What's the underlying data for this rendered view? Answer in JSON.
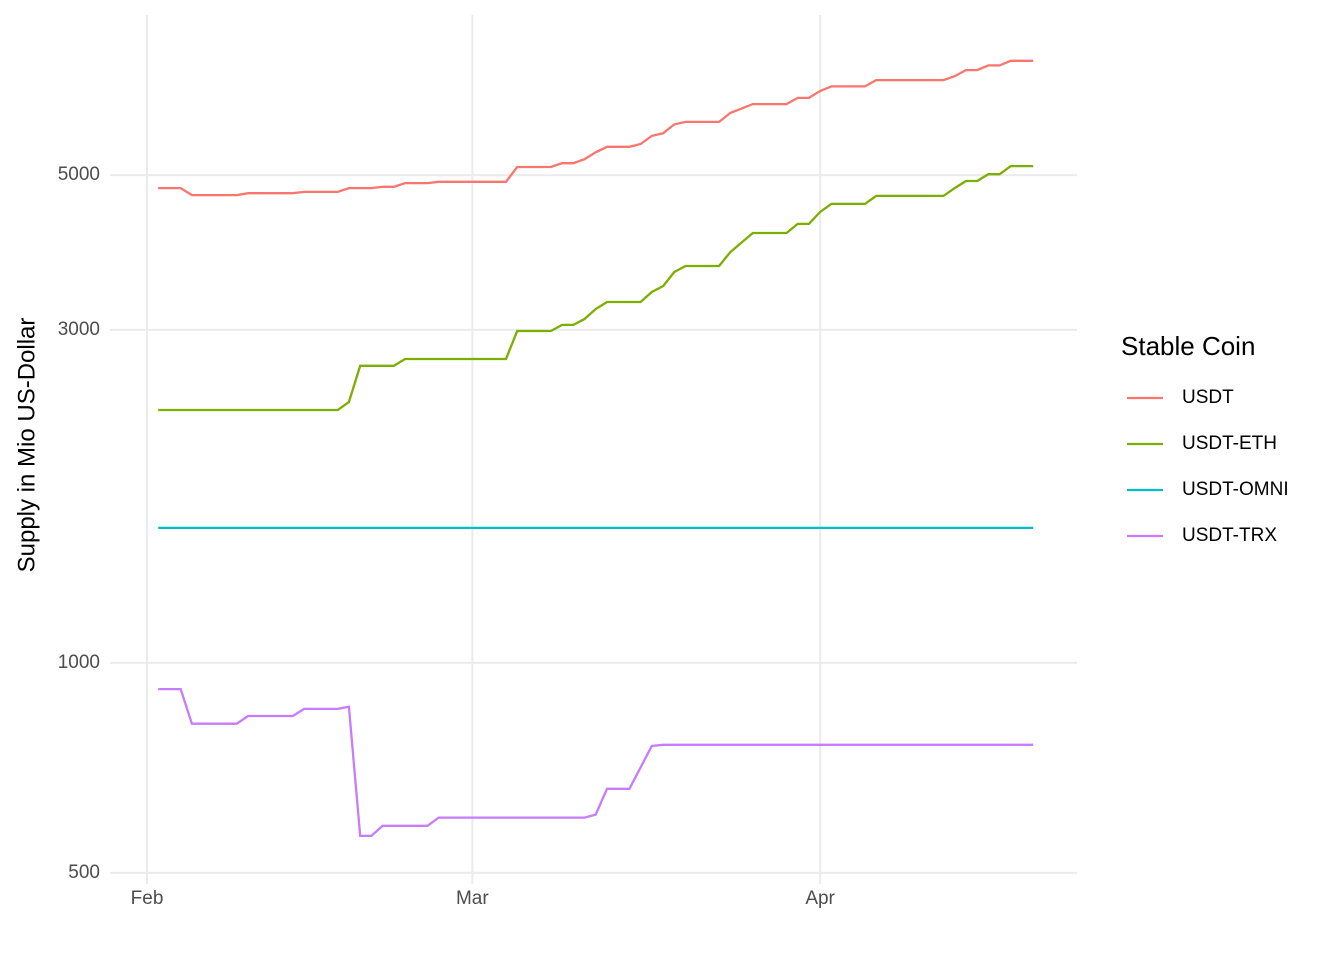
{
  "chart_data": {
    "type": "line",
    "ylabel": "Supply in Mio US-Dollar",
    "yscale": "log",
    "ylim": [
      482,
      8480
    ],
    "yticks": [
      500,
      1000,
      3000,
      5000
    ],
    "xlim": [
      -3.3,
      82.9
    ],
    "xticks": [
      {
        "value": 0,
        "label": "Feb"
      },
      {
        "value": 29,
        "label": "Mar"
      },
      {
        "value": 60,
        "label": "Apr"
      }
    ],
    "grid": true,
    "legend_title": "Stable Coin",
    "legend_position": "right",
    "series": [
      {
        "name": "USDT",
        "color": "#F8766D",
        "x": [
          1,
          3,
          4,
          8,
          9,
          13,
          14,
          17,
          18,
          20,
          21,
          22,
          23,
          25,
          26,
          32,
          33,
          36,
          37,
          38,
          39,
          40,
          41,
          43,
          44,
          45,
          46,
          47,
          48,
          51,
          52,
          54,
          57,
          58,
          59,
          60,
          61,
          64,
          65,
          71,
          72,
          73,
          74,
          75,
          76,
          77,
          79
        ],
        "values": [
          4790,
          4790,
          4680,
          4680,
          4710,
          4710,
          4730,
          4730,
          4790,
          4790,
          4810,
          4810,
          4870,
          4870,
          4890,
          4890,
          5135,
          5135,
          5200,
          5200,
          5270,
          5390,
          5490,
          5490,
          5540,
          5690,
          5740,
          5910,
          5960,
          5960,
          6140,
          6320,
          6320,
          6450,
          6450,
          6600,
          6700,
          6700,
          6840,
          6840,
          6930,
          7070,
          7070,
          7180,
          7180,
          7290,
          7290
        ]
      },
      {
        "name": "USDT-ETH",
        "color": "#7CAE00",
        "x": [
          1,
          17,
          18,
          19,
          22,
          23,
          32,
          33,
          36,
          37,
          38,
          39,
          40,
          41,
          44,
          45,
          46,
          47,
          48,
          51,
          52,
          54,
          57,
          58,
          59,
          60,
          61,
          64,
          65,
          71,
          72,
          73,
          74,
          75,
          76,
          77,
          79
        ],
        "values": [
          2303,
          2303,
          2365,
          2665,
          2665,
          2725,
          2725,
          2989,
          2989,
          3050,
          3050,
          3110,
          3214,
          3289,
          3289,
          3400,
          3467,
          3631,
          3704,
          3704,
          3879,
          4130,
          4130,
          4256,
          4256,
          4426,
          4546,
          4546,
          4668,
          4668,
          4790,
          4903,
          4903,
          5015,
          5015,
          5150,
          5150
        ]
      },
      {
        "name": "USDT-OMNI",
        "color": "#00BFC4",
        "x": [
          1,
          79
        ],
        "values": [
          1561,
          1561
        ]
      },
      {
        "name": "USDT-TRX",
        "color": "#C77CFF",
        "x": [
          1,
          3,
          4,
          8,
          9,
          13,
          14,
          17,
          18,
          19,
          20,
          21,
          25,
          26,
          39,
          40,
          41,
          43,
          45,
          46,
          79
        ],
        "values": [
          917,
          917,
          818,
          818,
          839,
          839,
          859,
          859,
          865,
          565,
          565,
          584,
          584,
          600,
          600,
          606,
          660,
          660,
          760,
          763,
          763
        ]
      }
    ]
  }
}
